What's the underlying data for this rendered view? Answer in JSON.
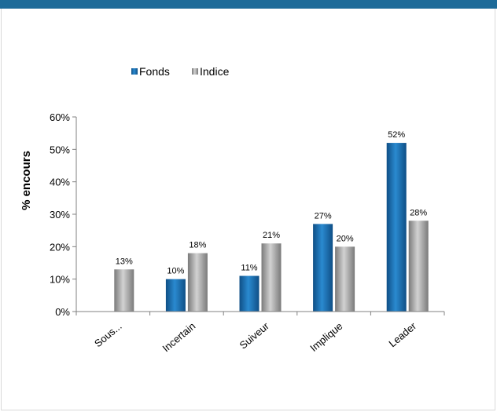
{
  "colors": {
    "top_bar": "#1d6b99",
    "fonds": "#1f77b4",
    "indice": "#a6a6a6",
    "axis": "#808080"
  },
  "chart_data": {
    "type": "bar",
    "title": "",
    "xlabel": "",
    "ylabel": "% encours",
    "categories": [
      "Sous...",
      "Incertain",
      "Suiveur",
      "Implique",
      "Leader"
    ],
    "series": [
      {
        "name": "Fonds",
        "values": [
          null,
          10,
          11,
          27,
          52
        ],
        "labels": [
          "",
          "10%",
          "11%",
          "27%",
          "52%"
        ],
        "color": "#1f77b4"
      },
      {
        "name": "Indice",
        "values": [
          13,
          18,
          21,
          20,
          28
        ],
        "labels": [
          "13%",
          "18%",
          "21%",
          "20%",
          "28%"
        ],
        "color": "#a6a6a6"
      }
    ],
    "ylim": [
      0,
      60
    ],
    "yticks": [
      "0%",
      "10%",
      "20%",
      "30%",
      "40%",
      "50%",
      "60%"
    ],
    "legend_position": "top-center",
    "grid": false
  }
}
